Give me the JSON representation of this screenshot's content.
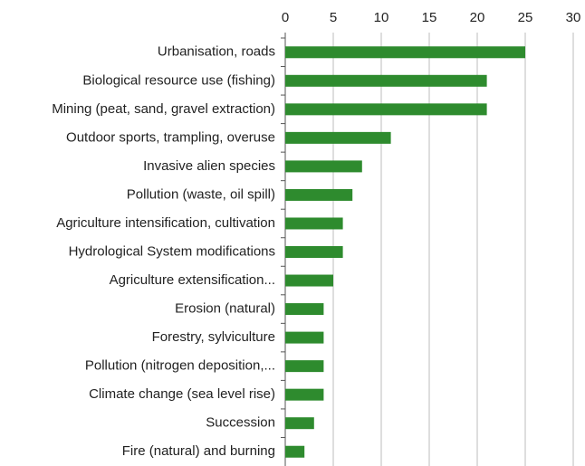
{
  "chart_data": {
    "type": "bar",
    "orientation": "horizontal",
    "categories": [
      "Urbanisation, roads",
      "Biological resource use (fishing)",
      "Mining (peat, sand, gravel extraction)",
      "Outdoor sports, trampling, overuse",
      "Invasive alien species",
      "Pollution (waste, oil spill)",
      "Agriculture intensification, cultivation",
      "Hydrological System modifications",
      "Agriculture extensification...",
      "Erosion (natural)",
      "Forestry, sylviculture",
      "Pollution (nitrogen deposition,...",
      "Climate change (sea level rise)",
      "Succession",
      "Fire (natural) and burning"
    ],
    "values": [
      25,
      21,
      21,
      11,
      8,
      7,
      6,
      6,
      5,
      4,
      4,
      4,
      4,
      3,
      2
    ],
    "color": "#2e8b2e",
    "xlim": [
      0,
      30
    ],
    "xticks": [
      0,
      5,
      10,
      15,
      20,
      25,
      30
    ],
    "grid": true
  }
}
